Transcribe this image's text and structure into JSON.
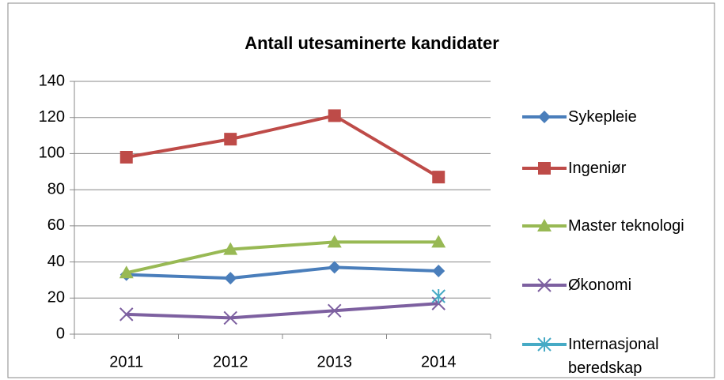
{
  "chart_data": {
    "type": "line",
    "title": "Antall utesaminerte kandidater",
    "categories": [
      "2011",
      "2012",
      "2013",
      "2014"
    ],
    "series": [
      {
        "name": "Sykepleie",
        "color": "#4a7ebb",
        "marker": "diamond",
        "values": [
          33,
          31,
          37,
          35
        ]
      },
      {
        "name": "Ingeniør",
        "color": "#be4b48",
        "marker": "square",
        "values": [
          98,
          108,
          121,
          87
        ]
      },
      {
        "name": "Master teknologi",
        "color": "#98b954",
        "marker": "triangle",
        "values": [
          34,
          47,
          51,
          51
        ]
      },
      {
        "name": "Økonomi",
        "color": "#7d60a0",
        "marker": "x",
        "values": [
          11,
          9,
          13,
          17
        ]
      },
      {
        "name": "Internasjonal beredskap",
        "color": "#46aac5",
        "marker": "star",
        "values": [
          null,
          null,
          null,
          21
        ]
      }
    ],
    "ylim": [
      0,
      140
    ],
    "yticks": [
      0,
      20,
      40,
      60,
      80,
      100,
      120,
      140
    ],
    "grid": true,
    "legend": "right"
  }
}
